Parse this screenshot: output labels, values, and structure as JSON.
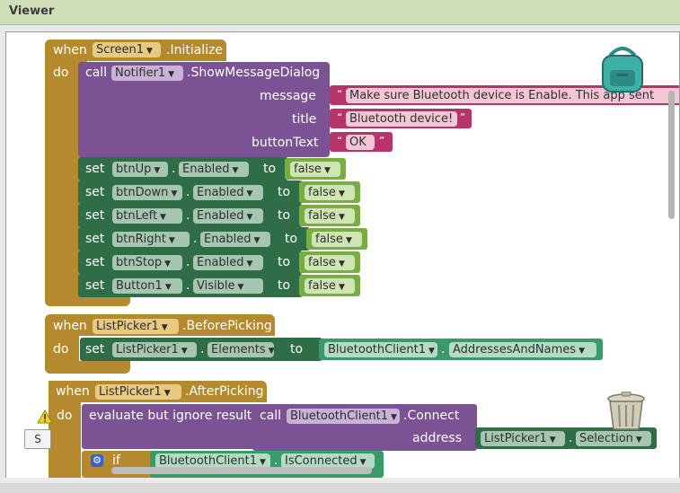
{
  "header": {
    "title": "Viewer"
  },
  "blocks": {
    "init": {
      "when": "when",
      "component": "Screen1",
      "event": ".Initialize",
      "do": "do",
      "call": "call",
      "notifier": "Notifier1",
      "method": ".ShowMessageDialog",
      "message_label": "message",
      "title_label": "title",
      "button_label": "buttonText",
      "message_value": "Make sure Bluetooth device is Enable.  This app sent",
      "title_value": "Bluetooth device!",
      "button_value": "OK",
      "sets": [
        {
          "set": "set",
          "component": "btnUp",
          "prop": "Enabled",
          "to": "to",
          "value": "false"
        },
        {
          "set": "set",
          "component": "btnDown",
          "prop": "Enabled",
          "to": "to",
          "value": "false"
        },
        {
          "set": "set",
          "component": "btnLeft",
          "prop": "Enabled",
          "to": "to",
          "value": "false"
        },
        {
          "set": "set",
          "component": "btnRight",
          "prop": "Enabled",
          "to": "to",
          "value": "false"
        },
        {
          "set": "set",
          "component": "btnStop",
          "prop": "Enabled",
          "to": "to",
          "value": "false"
        },
        {
          "set": "set",
          "component": "Button1",
          "prop": "Visible",
          "to": "to",
          "value": "false"
        }
      ]
    },
    "before": {
      "when": "when",
      "component": "ListPicker1",
      "event": ".BeforePicking",
      "do": "do",
      "set": "set",
      "target": "ListPicker1",
      "prop": "Elements",
      "to": "to",
      "bt": "BluetoothClient1",
      "bt_prop": "AddressesAndNames"
    },
    "after": {
      "when": "when",
      "component": "ListPicker1",
      "event": ".AfterPicking",
      "do": "do",
      "evaluate": "evaluate but ignore result",
      "call": "call",
      "bt": "BluetoothClient1",
      "method": ".Connect",
      "address_label": "address",
      "picker": "ListPicker1",
      "picker_prop": "Selection",
      "if": "if",
      "if_bt": "BluetoothClient1",
      "if_prop": "IsConnected"
    }
  },
  "side_button": {
    "label": "S"
  },
  "colors": {
    "event": "#b5892d",
    "procedure": "#7b5394",
    "set": "#2f6d46",
    "text": "#b8336a",
    "logic": "#77ad42",
    "bt": "#3a9a6a",
    "control": "#b5892d",
    "header": "#cfe0b8"
  }
}
